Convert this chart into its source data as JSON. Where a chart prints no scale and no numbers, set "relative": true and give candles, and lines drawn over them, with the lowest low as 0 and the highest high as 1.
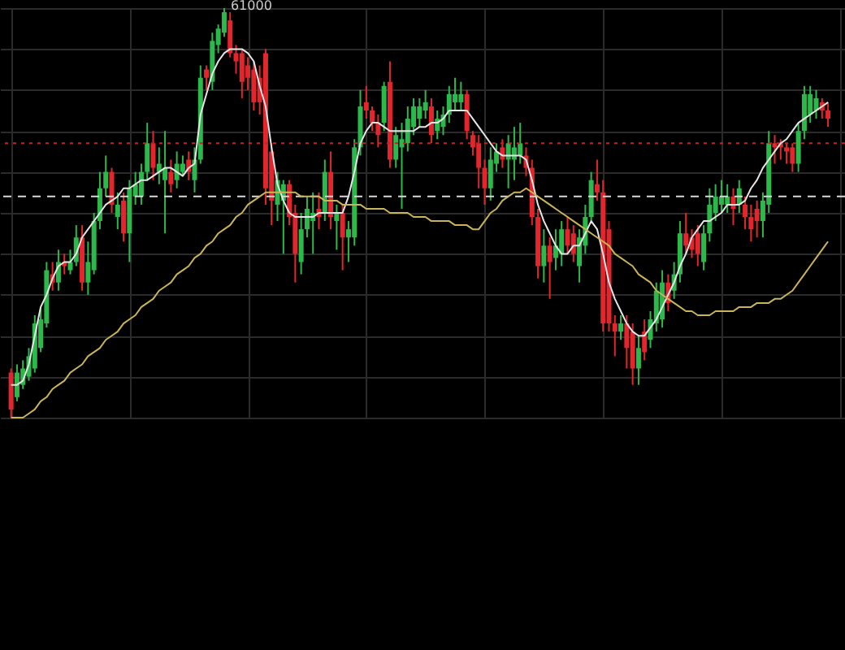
{
  "chart_data": {
    "type": "candlestick",
    "relative": true,
    "grid": true,
    "categories": [
      null,
      null,
      null,
      null,
      null,
      null,
      null,
      null,
      null,
      null,
      null,
      null,
      null,
      null,
      null,
      null,
      null,
      null,
      null,
      null,
      null,
      null,
      null,
      null,
      null,
      null,
      null,
      null,
      null,
      null,
      null,
      null,
      null,
      null,
      null,
      null,
      null,
      null,
      null,
      null,
      null,
      null,
      null,
      null,
      null,
      null,
      null,
      null,
      null,
      null,
      null,
      null,
      null,
      null,
      null,
      null,
      null,
      null,
      null,
      null,
      null,
      null,
      null,
      null,
      null,
      null,
      null,
      null,
      null,
      null,
      null,
      null,
      null,
      null,
      null,
      null,
      null,
      null,
      null,
      null,
      null,
      null,
      null,
      null,
      null,
      null,
      null,
      null,
      null,
      null,
      null,
      null,
      null,
      null,
      null,
      null,
      null,
      null,
      null,
      null,
      null,
      null,
      null,
      null,
      null,
      null,
      null,
      null,
      null,
      null,
      null,
      null,
      null,
      null,
      null,
      null,
      null,
      null,
      null,
      null,
      null,
      null,
      null,
      null,
      null,
      null,
      null,
      null,
      null,
      null,
      null,
      null,
      null,
      null,
      null,
      null,
      null,
      null,
      null
    ],
    "ohlc": [
      [
        0.11,
        0.12,
        0,
        0.02
      ],
      [
        0.05,
        0.13,
        0.04,
        0.11
      ],
      [
        0.08,
        0.14,
        0.07,
        0.12
      ],
      [
        0.1,
        0.17,
        0.09,
        0.15
      ],
      [
        0.12,
        0.25,
        0.11,
        0.23
      ],
      [
        0.17,
        0.27,
        0.16,
        0.24
      ],
      [
        0.23,
        0.38,
        0.22,
        0.36
      ],
      [
        0.35,
        0.38,
        0.31,
        0.33
      ],
      [
        0.33,
        0.41,
        0.31,
        0.38
      ],
      [
        0.38,
        0.4,
        0.35,
        0.37
      ],
      [
        0.36,
        0.41,
        0.35,
        0.38
      ],
      [
        0.38,
        0.47,
        0.37,
        0.44
      ],
      [
        0.44,
        0.47,
        0.31,
        0.33
      ],
      [
        0.33,
        0.43,
        0.3,
        0.38
      ],
      [
        0.36,
        0.5,
        0.35,
        0.48
      ],
      [
        0.48,
        0.6,
        0.46,
        0.56
      ],
      [
        0.56,
        0.64,
        0.54,
        0.6
      ],
      [
        0.6,
        0.61,
        0.5,
        0.52
      ],
      [
        0.49,
        0.55,
        0.46,
        0.52
      ],
      [
        0.53,
        0.55,
        0.43,
        0.45
      ],
      [
        0.45,
        0.58,
        0.38,
        0.56
      ],
      [
        0.54,
        0.6,
        0.52,
        0.57
      ],
      [
        0.54,
        0.62,
        0.52,
        0.6
      ],
      [
        0.6,
        0.72,
        0.58,
        0.67
      ],
      [
        0.67,
        0.7,
        0.58,
        0.61
      ],
      [
        0.6,
        0.66,
        0.57,
        0.62
      ],
      [
        0.58,
        0.7,
        0.45,
        0.61
      ],
      [
        0.6,
        0.63,
        0.55,
        0.57
      ],
      [
        0.58,
        0.65,
        0.56,
        0.62
      ],
      [
        0.6,
        0.64,
        0.59,
        0.62
      ],
      [
        0.63,
        0.65,
        0.58,
        0.6
      ],
      [
        0.58,
        0.66,
        0.55,
        0.63
      ],
      [
        0.63,
        0.86,
        0.62,
        0.83
      ],
      [
        0.85,
        0.86,
        0.8,
        0.83
      ],
      [
        0.82,
        0.94,
        0.8,
        0.92
      ],
      [
        0.91,
        0.96,
        0.89,
        0.95
      ],
      [
        0.94,
        1.0,
        0.93,
        0.99
      ],
      [
        0.97,
        0.99,
        0.88,
        0.89
      ],
      [
        0.89,
        0.91,
        0.84,
        0.87
      ],
      [
        0.89,
        0.9,
        0.78,
        0.82
      ],
      [
        0.86,
        0.88,
        0.8,
        0.83
      ],
      [
        0.85,
        0.87,
        0.75,
        0.77
      ],
      [
        0.83,
        0.86,
        0.74,
        0.77
      ],
      [
        0.89,
        0.9,
        0.52,
        0.56
      ],
      [
        0.65,
        0.67,
        0.47,
        0.53
      ],
      [
        0.52,
        0.6,
        0.48,
        0.58
      ],
      [
        0.53,
        0.58,
        0.4,
        0.57
      ],
      [
        0.57,
        0.58,
        0.47,
        0.49
      ],
      [
        0.5,
        0.52,
        0.33,
        0.4
      ],
      [
        0.38,
        0.5,
        0.35,
        0.46
      ],
      [
        0.46,
        0.54,
        0.44,
        0.51
      ],
      [
        0.48,
        0.55,
        0.4,
        0.5
      ],
      [
        0.51,
        0.55,
        0.46,
        0.49
      ],
      [
        0.5,
        0.63,
        0.48,
        0.6
      ],
      [
        0.6,
        0.65,
        0.46,
        0.49
      ],
      [
        0.48,
        0.52,
        0.41,
        0.5
      ],
      [
        0.5,
        0.52,
        0.36,
        0.44
      ],
      [
        0.44,
        0.48,
        0.38,
        0.46
      ],
      [
        0.44,
        0.68,
        0.42,
        0.66
      ],
      [
        0.66,
        0.8,
        0.64,
        0.76
      ],
      [
        0.77,
        0.81,
        0.73,
        0.75
      ],
      [
        0.75,
        0.76,
        0.7,
        0.72
      ],
      [
        0.72,
        0.74,
        0.66,
        0.69
      ],
      [
        0.72,
        0.82,
        0.7,
        0.81
      ],
      [
        0.82,
        0.87,
        0.61,
        0.63
      ],
      [
        0.63,
        0.71,
        0.61,
        0.69
      ],
      [
        0.66,
        0.72,
        0.51,
        0.68
      ],
      [
        0.67,
        0.76,
        0.65,
        0.73
      ],
      [
        0.71,
        0.78,
        0.69,
        0.76
      ],
      [
        0.73,
        0.78,
        0.71,
        0.76
      ],
      [
        0.75,
        0.8,
        0.73,
        0.77
      ],
      [
        0.76,
        0.78,
        0.67,
        0.69
      ],
      [
        0.7,
        0.75,
        0.68,
        0.73
      ],
      [
        0.71,
        0.76,
        0.69,
        0.74
      ],
      [
        0.74,
        0.81,
        0.72,
        0.79
      ],
      [
        0.77,
        0.83,
        0.75,
        0.79
      ],
      [
        0.77,
        0.82,
        0.75,
        0.79
      ],
      [
        0.79,
        0.8,
        0.68,
        0.7
      ],
      [
        0.69,
        0.7,
        0.64,
        0.66
      ],
      [
        0.67,
        0.69,
        0.56,
        0.61
      ],
      [
        0.61,
        0.63,
        0.52,
        0.56
      ],
      [
        0.56,
        0.66,
        0.53,
        0.63
      ],
      [
        0.62,
        0.67,
        0.6,
        0.65
      ],
      [
        0.66,
        0.68,
        0.61,
        0.63
      ],
      [
        0.63,
        0.69,
        0.56,
        0.67
      ],
      [
        0.63,
        0.71,
        0.58,
        0.66
      ],
      [
        0.64,
        0.72,
        0.62,
        0.67
      ],
      [
        0.64,
        0.66,
        0.59,
        0.61
      ],
      [
        0.61,
        0.63,
        0.47,
        0.49
      ],
      [
        0.49,
        0.51,
        0.34,
        0.37
      ],
      [
        0.37,
        0.46,
        0.33,
        0.42
      ],
      [
        0.42,
        0.44,
        0.29,
        0.38
      ],
      [
        0.39,
        0.46,
        0.36,
        0.42
      ],
      [
        0.4,
        0.48,
        0.37,
        0.46
      ],
      [
        0.46,
        0.49,
        0.4,
        0.42
      ],
      [
        0.45,
        0.47,
        0.38,
        0.4
      ],
      [
        0.37,
        0.46,
        0.33,
        0.44
      ],
      [
        0.42,
        0.52,
        0.4,
        0.49
      ],
      [
        0.49,
        0.6,
        0.48,
        0.58
      ],
      [
        0.57,
        0.63,
        0.53,
        0.55
      ],
      [
        0.55,
        0.58,
        0.21,
        0.23
      ],
      [
        0.46,
        0.48,
        0.21,
        0.23
      ],
      [
        0.23,
        0.25,
        0.15,
        0.21
      ],
      [
        0.21,
        0.25,
        0.19,
        0.23
      ],
      [
        0.23,
        0.25,
        0.12,
        0.17
      ],
      [
        0.21,
        0.23,
        0.08,
        0.12
      ],
      [
        0.12,
        0.2,
        0.08,
        0.17
      ],
      [
        0.21,
        0.24,
        0.14,
        0.16
      ],
      [
        0.19,
        0.26,
        0.17,
        0.24
      ],
      [
        0.23,
        0.33,
        0.21,
        0.31
      ],
      [
        0.24,
        0.36,
        0.22,
        0.33
      ],
      [
        0.33,
        0.35,
        0.26,
        0.28
      ],
      [
        0.31,
        0.38,
        0.29,
        0.35
      ],
      [
        0.35,
        0.48,
        0.33,
        0.45
      ],
      [
        0.45,
        0.5,
        0.4,
        0.42
      ],
      [
        0.44,
        0.46,
        0.39,
        0.41
      ],
      [
        0.45,
        0.47,
        0.37,
        0.4
      ],
      [
        0.38,
        0.47,
        0.36,
        0.45
      ],
      [
        0.45,
        0.56,
        0.43,
        0.52
      ],
      [
        0.5,
        0.57,
        0.48,
        0.54
      ],
      [
        0.52,
        0.58,
        0.5,
        0.54
      ],
      [
        0.52,
        0.57,
        0.5,
        0.54
      ],
      [
        0.54,
        0.56,
        0.47,
        0.51
      ],
      [
        0.52,
        0.58,
        0.5,
        0.56
      ],
      [
        0.52,
        0.54,
        0.46,
        0.49
      ],
      [
        0.49,
        0.52,
        0.43,
        0.46
      ],
      [
        0.51,
        0.53,
        0.44,
        0.48
      ],
      [
        0.48,
        0.55,
        0.44,
        0.53
      ],
      [
        0.52,
        0.7,
        0.5,
        0.67
      ],
      [
        0.67,
        0.69,
        0.62,
        0.66
      ],
      [
        0.67,
        0.68,
        0.63,
        0.66
      ],
      [
        0.66,
        0.67,
        0.62,
        0.65
      ],
      [
        0.66,
        0.67,
        0.6,
        0.62
      ],
      [
        0.62,
        0.72,
        0.6,
        0.7
      ],
      [
        0.7,
        0.81,
        0.68,
        0.79
      ],
      [
        0.74,
        0.81,
        0.72,
        0.79
      ],
      [
        0.75,
        0.8,
        0.73,
        0.78
      ],
      [
        0.77,
        0.78,
        0.73,
        0.75
      ],
      [
        0.75,
        0.77,
        0.71,
        0.73
      ]
    ],
    "colors": [
      "#e3262d",
      "#2db84c",
      "#2db84c",
      "#2db84c",
      "#2db84c",
      "#2db84c",
      "#2db84c",
      "#e3262d",
      "#2db84c",
      "#e3262d",
      "#2db84c",
      "#2db84c",
      "#e3262d",
      "#2db84c",
      "#2db84c",
      "#2db84c",
      "#2db84c",
      "#e3262d",
      "#2db84c",
      "#e3262d",
      "#2db84c",
      "#2db84c",
      "#2db84c",
      "#2db84c",
      "#e3262d",
      "#2db84c",
      "#2db84c",
      "#e3262d",
      "#2db84c",
      "#2db84c",
      "#e3262d",
      "#2db84c",
      "#2db84c",
      "#e3262d",
      "#2db84c",
      "#2db84c",
      "#2db84c",
      "#e3262d",
      "#e3262d",
      "#e3262d",
      "#e3262d",
      "#e3262d",
      "#e3262d",
      "#e3262d",
      "#e3262d",
      "#2db84c",
      "#2db84c",
      "#e3262d",
      "#e3262d",
      "#2db84c",
      "#2db84c",
      "#2db84c",
      "#e3262d",
      "#2db84c",
      "#e3262d",
      "#2db84c",
      "#e3262d",
      "#2db84c",
      "#2db84c",
      "#2db84c",
      "#e3262d",
      "#e3262d",
      "#e3262d",
      "#2db84c",
      "#e3262d",
      "#2db84c",
      "#2db84c",
      "#2db84c",
      "#2db84c",
      "#2db84c",
      "#2db84c",
      "#e3262d",
      "#2db84c",
      "#2db84c",
      "#2db84c",
      "#2db84c",
      "#2db84c",
      "#e3262d",
      "#e3262d",
      "#e3262d",
      "#e3262d",
      "#2db84c",
      "#2db84c",
      "#e3262d",
      "#2db84c",
      "#2db84c",
      "#2db84c",
      "#e3262d",
      "#e3262d",
      "#e3262d",
      "#2db84c",
      "#e3262d",
      "#2db84c",
      "#2db84c",
      "#e3262d",
      "#e3262d",
      "#2db84c",
      "#2db84c",
      "#2db84c",
      "#e3262d",
      "#e3262d",
      "#e3262d",
      "#e3262d",
      "#2db84c",
      "#e3262d",
      "#e3262d",
      "#2db84c",
      "#e3262d",
      "#2db84c",
      "#2db84c",
      "#2db84c",
      "#e3262d",
      "#2db84c",
      "#2db84c",
      "#e3262d",
      "#e3262d",
      "#e3262d",
      "#2db84c",
      "#2db84c",
      "#2db84c",
      "#2db84c",
      "#2db84c",
      "#e3262d",
      "#2db84c",
      "#e3262d",
      "#e3262d",
      "#e3262d",
      "#2db84c",
      "#2db84c",
      "#e3262d",
      "#e3262d",
      "#e3262d",
      "#e3262d",
      "#2db84c",
      "#2db84c",
      "#2db84c",
      "#2db84c",
      "#e3262d",
      "#e3262d"
    ],
    "series": [
      {
        "type": "line",
        "color": "#e6e6e6",
        "values": [
          0.08,
          0.08,
          0.09,
          0.13,
          0.2,
          0.27,
          0.3,
          0.34,
          0.37,
          0.38,
          0.38,
          0.4,
          0.44,
          0.46,
          0.48,
          0.5,
          0.52,
          0.53,
          0.54,
          0.56,
          0.56,
          0.57,
          0.58,
          0.58,
          0.59,
          0.6,
          0.61,
          0.61,
          0.6,
          0.59,
          0.61,
          0.62,
          0.74,
          0.79,
          0.84,
          0.87,
          0.89,
          0.9,
          0.9,
          0.9,
          0.89,
          0.87,
          0.81,
          0.76,
          0.66,
          0.57,
          0.53,
          0.5,
          0.49,
          0.49,
          0.49,
          0.49,
          0.5,
          0.5,
          0.5,
          0.5,
          0.5,
          0.54,
          0.6,
          0.67,
          0.7,
          0.72,
          0.72,
          0.71,
          0.7,
          0.7,
          0.7,
          0.7,
          0.7,
          0.71,
          0.71,
          0.72,
          0.72,
          0.73,
          0.75,
          0.75,
          0.75,
          0.75,
          0.73,
          0.71,
          0.69,
          0.67,
          0.65,
          0.64,
          0.64,
          0.64,
          0.64,
          0.63,
          0.58,
          0.52,
          0.48,
          0.45,
          0.42,
          0.4,
          0.4,
          0.42,
          0.42,
          0.45,
          0.48,
          0.46,
          0.4,
          0.33,
          0.29,
          0.26,
          0.23,
          0.21,
          0.2,
          0.2,
          0.22,
          0.24,
          0.27,
          0.3,
          0.33,
          0.37,
          0.4,
          0.44,
          0.46,
          0.48,
          0.48,
          0.49,
          0.5,
          0.52,
          0.52,
          0.52,
          0.53,
          0.56,
          0.58,
          0.61,
          0.63,
          0.65,
          0.67,
          0.68,
          0.7,
          0.72,
          0.73,
          0.74,
          0.75,
          0.76,
          0.77
        ]
      },
      {
        "type": "line",
        "color": "#c9b558",
        "values": [
          0,
          0,
          0,
          0.01,
          0.02,
          0.04,
          0.05,
          0.07,
          0.08,
          0.09,
          0.11,
          0.12,
          0.13,
          0.15,
          0.16,
          0.17,
          0.19,
          0.2,
          0.21,
          0.23,
          0.24,
          0.25,
          0.27,
          0.28,
          0.29,
          0.31,
          0.32,
          0.33,
          0.35,
          0.36,
          0.37,
          0.39,
          0.4,
          0.42,
          0.43,
          0.45,
          0.46,
          0.47,
          0.49,
          0.5,
          0.52,
          0.53,
          0.54,
          0.55,
          0.55,
          0.55,
          0.55,
          0.55,
          0.55,
          0.54,
          0.54,
          0.54,
          0.54,
          0.53,
          0.53,
          0.53,
          0.52,
          0.52,
          0.52,
          0.52,
          0.51,
          0.51,
          0.51,
          0.51,
          0.5,
          0.5,
          0.5,
          0.5,
          0.49,
          0.49,
          0.49,
          0.48,
          0.48,
          0.48,
          0.48,
          0.47,
          0.47,
          0.47,
          0.46,
          0.46,
          0.48,
          0.5,
          0.51,
          0.53,
          0.54,
          0.55,
          0.55,
          0.56,
          0.55,
          0.54,
          0.53,
          0.52,
          0.51,
          0.5,
          0.49,
          0.48,
          0.47,
          0.46,
          0.45,
          0.44,
          0.43,
          0.42,
          0.4,
          0.39,
          0.38,
          0.37,
          0.35,
          0.34,
          0.33,
          0.31,
          0.3,
          0.29,
          0.28,
          0.27,
          0.26,
          0.26,
          0.25,
          0.25,
          0.25,
          0.26,
          0.26,
          0.26,
          0.26,
          0.27,
          0.27,
          0.27,
          0.28,
          0.28,
          0.28,
          0.29,
          0.29,
          0.3,
          0.31,
          0.33,
          0.35,
          0.37,
          0.39,
          0.41,
          0.43
        ]
      }
    ],
    "ref_lines": [
      {
        "axis": "y",
        "value": 0.67,
        "color": "#c02424",
        "line_style": "dotted"
      },
      {
        "axis": "y",
        "value": 0.54,
        "color": "#d8d8d8",
        "line_style": "dashed"
      }
    ],
    "annotations": [
      "61000"
    ]
  }
}
